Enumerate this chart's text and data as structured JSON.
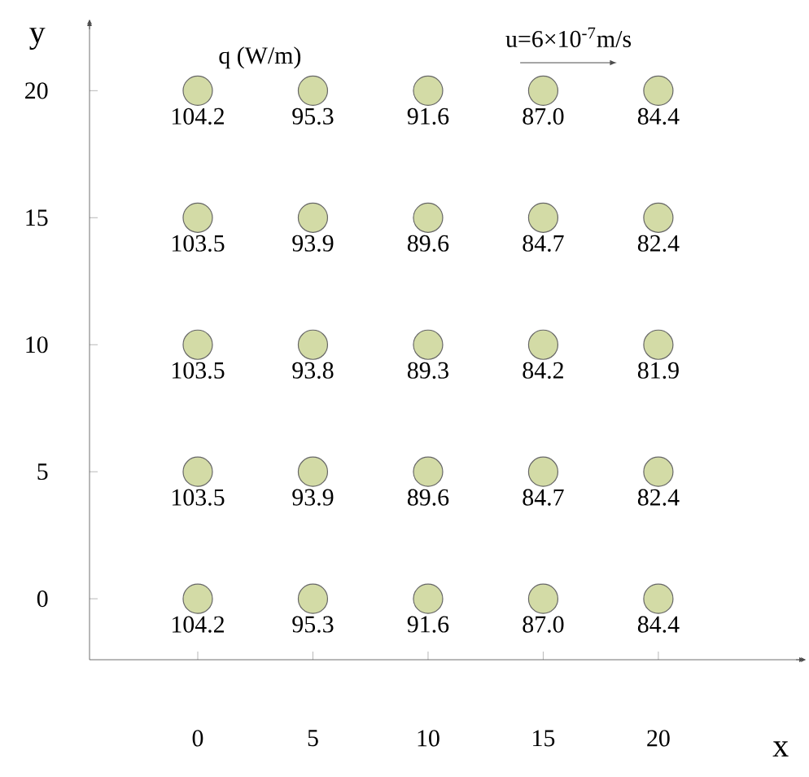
{
  "chart_data": {
    "type": "scatter",
    "xlabel": "x",
    "ylabel": "y",
    "annotations": [
      "q (W/m)",
      "u=6×10$^{-7}$m/s",
      {
        "text": "104.2",
        "x": 0,
        "y": 20
      },
      {
        "text": "95.3",
        "x": 5,
        "y": 20
      },
      {
        "text": "91.6",
        "x": 10,
        "y": 20
      },
      {
        "text": "87.0",
        "x": 15,
        "y": 20
      },
      {
        "text": "84.4",
        "x": 20,
        "y": 20
      },
      {
        "text": "103.5",
        "x": 0,
        "y": 15
      },
      {
        "text": "93.9",
        "x": 5,
        "y": 15
      },
      {
        "text": "89.6",
        "x": 10,
        "y": 15
      },
      {
        "text": "84.7",
        "x": 15,
        "y": 15
      },
      {
        "text": "82.4",
        "x": 20,
        "y": 15
      },
      {
        "text": "103.5",
        "x": 0,
        "y": 10
      },
      {
        "text": "93.8",
        "x": 5,
        "y": 10
      },
      {
        "text": "89.3",
        "x": 10,
        "y": 10
      },
      {
        "text": "84.2",
        "x": 15,
        "y": 10
      },
      {
        "text": "81.9",
        "x": 20,
        "y": 10
      },
      {
        "text": "103.5",
        "x": 0,
        "y": 5
      },
      {
        "text": "93.9",
        "x": 5,
        "y": 5
      },
      {
        "text": "89.6",
        "x": 10,
        "y": 5
      },
      {
        "text": "84.7",
        "x": 15,
        "y": 5
      },
      {
        "text": "82.4",
        "x": 20,
        "y": 5
      },
      {
        "text": "104.2",
        "x": 0,
        "y": 0
      },
      {
        "text": "95.3",
        "x": 5,
        "y": 0
      },
      {
        "text": "91.6",
        "x": 10,
        "y": 0
      },
      {
        "text": "87.0",
        "x": 15,
        "y": 0
      },
      {
        "text": "84.4",
        "x": 20,
        "y": 0
      }
    ],
    "x": [
      0,
      5,
      10,
      15,
      20,
      0,
      5,
      10,
      15,
      20,
      0,
      5,
      10,
      15,
      20,
      0,
      5,
      10,
      15,
      20,
      0,
      5,
      10,
      15,
      20
    ],
    "series": [
      {
        "color": "#d3dba6",
        "values": [
          20,
          20,
          20,
          20,
          20,
          15,
          15,
          15,
          15,
          15,
          10,
          10,
          10,
          10,
          10,
          5,
          5,
          5,
          5,
          5,
          0,
          0,
          0,
          0,
          0
        ]
      }
    ],
    "xlim": [
      -4.7,
      26.4
    ],
    "ylim": [
      -2.4,
      22.8
    ],
    "xticks": [
      0,
      5,
      10,
      15,
      20
    ],
    "yticks": [
      0,
      5,
      10,
      15,
      20
    ],
    "grid": false
  }
}
